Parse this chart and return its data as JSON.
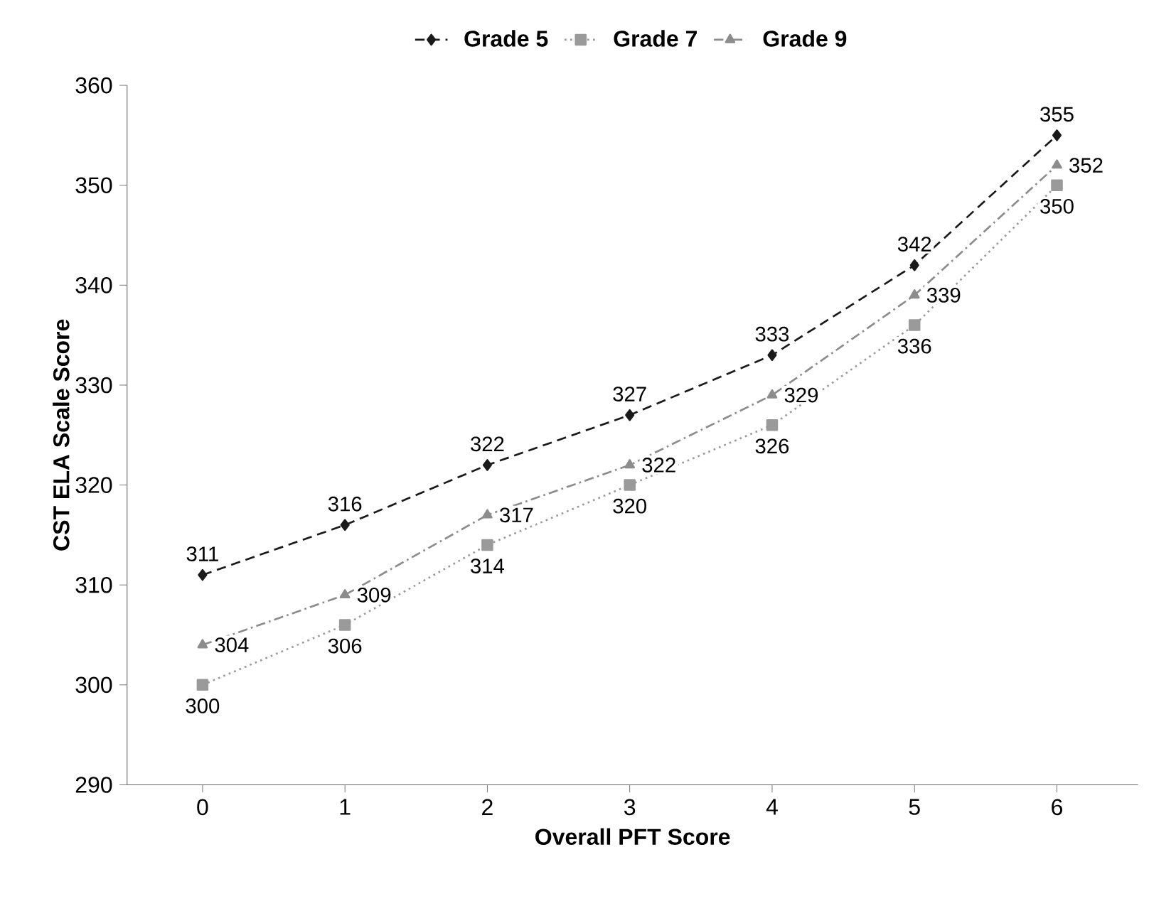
{
  "chart_data": {
    "type": "line",
    "xlabel": "Overall PFT Score",
    "ylabel": "CST ELA Scale Score",
    "categories": [
      "0",
      "1",
      "2",
      "3",
      "4",
      "5",
      "6"
    ],
    "series": [
      {
        "name": "Grade 5",
        "color": "#1a1a1a",
        "marker": "diamond",
        "line_style": "dashed",
        "values": [
          311,
          316,
          322,
          327,
          333,
          342,
          355
        ]
      },
      {
        "name": "Grade 7",
        "color": "#9a9a9a",
        "marker": "square",
        "line_style": "dotted",
        "values": [
          300,
          306,
          314,
          320,
          326,
          336,
          350
        ]
      },
      {
        "name": "Grade 9",
        "color": "#8c8c8c",
        "marker": "triangle",
        "line_style": "dashed",
        "values": [
          304,
          309,
          317,
          322,
          329,
          339,
          352
        ]
      }
    ],
    "ylim": [
      290,
      360
    ],
    "yticks": [
      290,
      300,
      310,
      320,
      330,
      340,
      350,
      360
    ],
    "grid": false,
    "legend": "top",
    "data_labels": true
  }
}
